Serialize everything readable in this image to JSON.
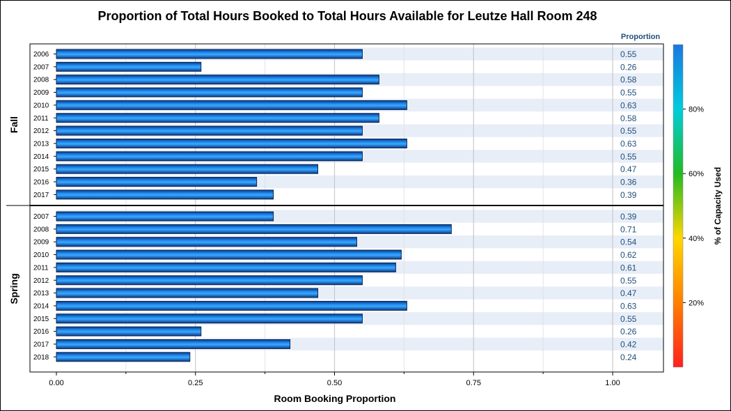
{
  "chart_data": {
    "type": "bar",
    "orientation": "horizontal",
    "title": "Proportion of Total Hours Booked to Total Hours Available for Leutze Hall Room 248",
    "xlabel": "Room Booking Proportion",
    "xlim": [
      0,
      1.0
    ],
    "xticks": [
      "0.00",
      "0.25",
      "0.50",
      "0.75",
      "1.00"
    ],
    "value_column_header": "Proportion",
    "grid": true,
    "panels": [
      {
        "name": "Fall",
        "categories": [
          "2006",
          "2007",
          "2008",
          "2009",
          "2010",
          "2011",
          "2012",
          "2013",
          "2014",
          "2015",
          "2016",
          "2017"
        ],
        "values": [
          0.55,
          0.26,
          0.58,
          0.55,
          0.63,
          0.58,
          0.55,
          0.63,
          0.55,
          0.47,
          0.36,
          0.39
        ],
        "labels": [
          "0.55",
          "0.26",
          "0.58",
          "0.55",
          "0.63",
          "0.58",
          "0.55",
          "0.63",
          "0.55",
          "0.47",
          "0.36",
          "0.39"
        ]
      },
      {
        "name": "Spring",
        "categories": [
          "2007",
          "2008",
          "2009",
          "2010",
          "2011",
          "2012",
          "2013",
          "2014",
          "2015",
          "2016",
          "2017",
          "2018"
        ],
        "values": [
          0.39,
          0.71,
          0.54,
          0.62,
          0.61,
          0.55,
          0.47,
          0.63,
          0.55,
          0.26,
          0.42,
          0.24
        ],
        "labels": [
          "0.39",
          "0.71",
          "0.54",
          "0.62",
          "0.61",
          "0.55",
          "0.47",
          "0.63",
          "0.55",
          "0.26",
          "0.42",
          "0.24"
        ]
      }
    ],
    "legend": {
      "title": "% of Capacity Used",
      "ticks": [
        "20%",
        "40%",
        "60%",
        "80%"
      ],
      "tick_values": [
        0.2,
        0.4,
        0.6,
        0.8
      ],
      "range": [
        0,
        1.0
      ],
      "colors": [
        "#ff2020",
        "#ff7f00",
        "#ffd700",
        "#22bb22",
        "#00ccdd",
        "#1a78e0"
      ],
      "placement": "right"
    },
    "bar_color": "#1a78e0",
    "stripe_color": "#e8eef8"
  }
}
